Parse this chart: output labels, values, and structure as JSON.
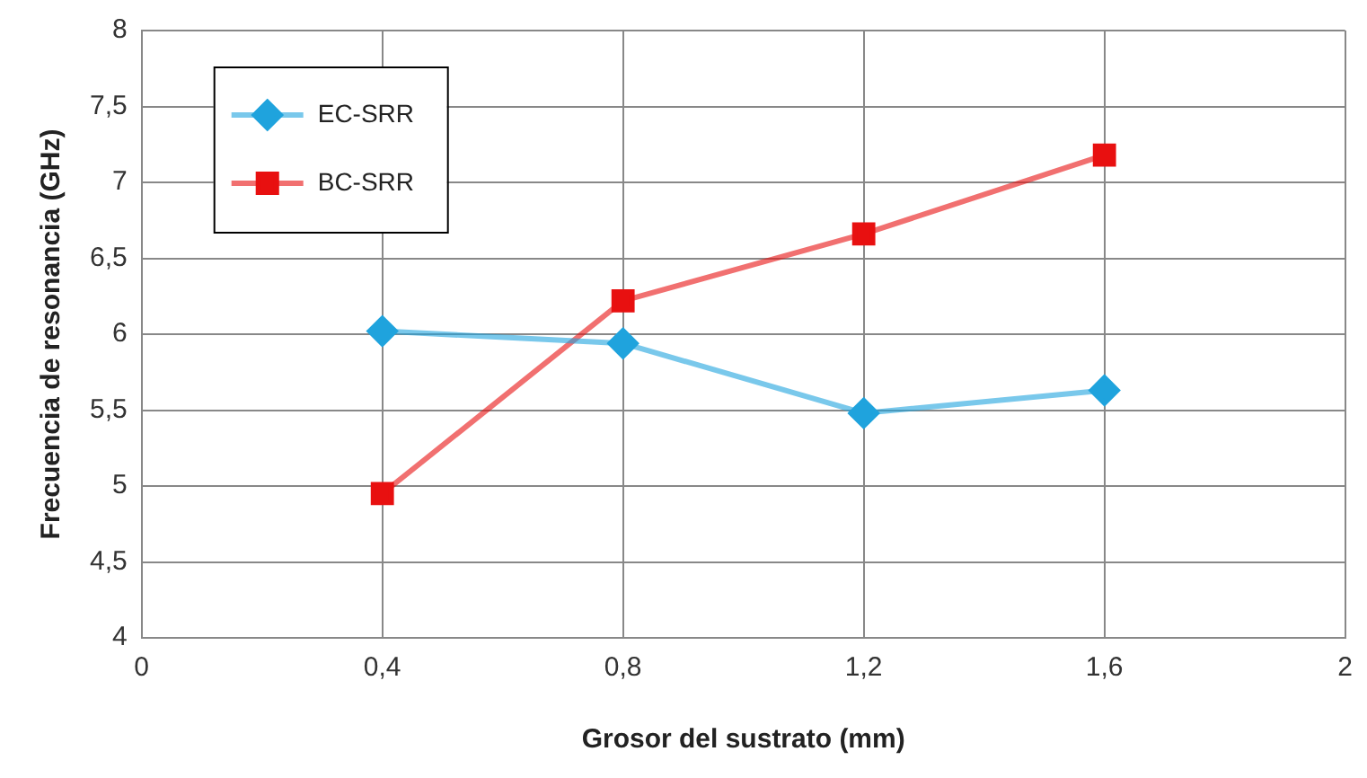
{
  "chart_data": {
    "type": "line",
    "xlabel": "Grosor del sustrato (mm)",
    "ylabel": "Frecuencia de resonancia (GHz)",
    "x": [
      0.4,
      0.8,
      1.2,
      1.6
    ],
    "series": [
      {
        "name": "EC-SRR",
        "color": "#1fa3dd",
        "marker": "diamond",
        "values": [
          6.02,
          5.94,
          5.48,
          5.63
        ]
      },
      {
        "name": "BC-SRR",
        "color": "#e81010",
        "marker": "square",
        "values": [
          4.95,
          6.22,
          6.66,
          7.18
        ]
      }
    ],
    "xlim": [
      0,
      2
    ],
    "xticks": [
      {
        "value": 0,
        "label": "0"
      },
      {
        "value": 0.4,
        "label": "0,4"
      },
      {
        "value": 0.8,
        "label": "0,8"
      },
      {
        "value": 1.2,
        "label": "1,2"
      },
      {
        "value": 1.6,
        "label": "1,6"
      },
      {
        "value": 2,
        "label": "2"
      }
    ],
    "ylim": [
      4,
      8
    ],
    "yticks": [
      {
        "value": 4,
        "label": "4"
      },
      {
        "value": 4.5,
        "label": "4,5"
      },
      {
        "value": 5,
        "label": "5"
      },
      {
        "value": 5.5,
        "label": "5,5"
      },
      {
        "value": 6,
        "label": "6"
      },
      {
        "value": 6.5,
        "label": "6,5"
      },
      {
        "value": 7,
        "label": "7"
      },
      {
        "value": 7.5,
        "label": "7,5"
      },
      {
        "value": 8,
        "label": "8"
      }
    ],
    "grid": true,
    "legend": "top left"
  }
}
